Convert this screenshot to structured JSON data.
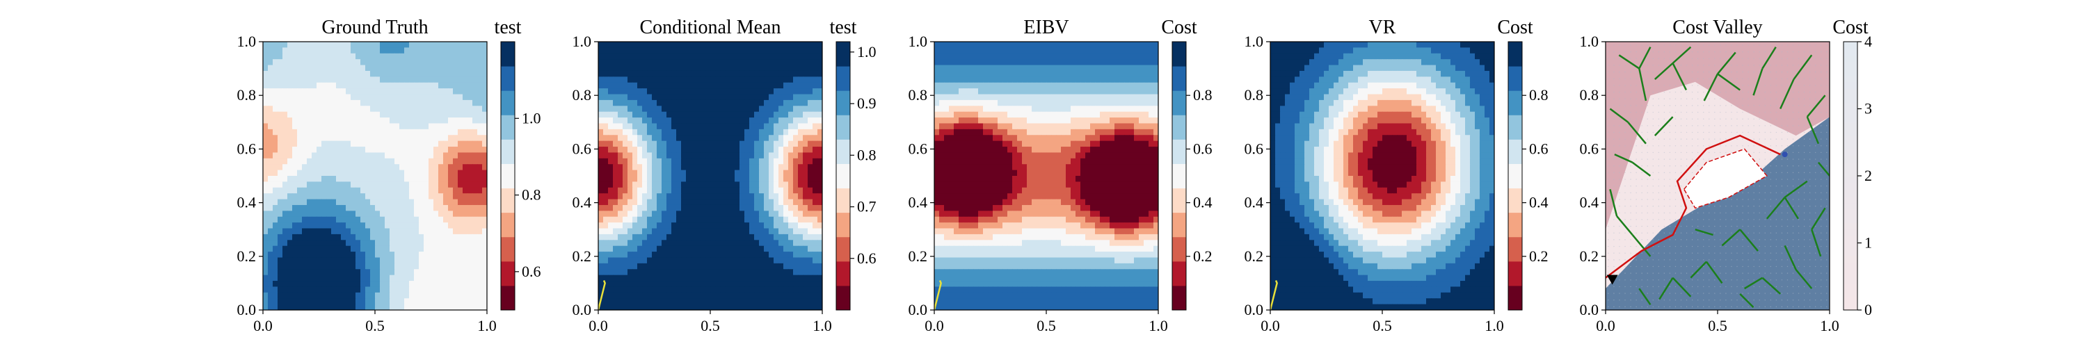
{
  "colors": {
    "rdbu": [
      "#67001f",
      "#b2182b",
      "#d6604d",
      "#f4a582",
      "#fddbc7",
      "#f7f7f7",
      "#d1e5f0",
      "#92c5de",
      "#4393c3",
      "#2166ac",
      "#053061"
    ],
    "path": "#e8e03a",
    "tree": "#1b7f1b",
    "route": "#d01010",
    "agent": "#000000",
    "valley_low": "#f4e6e8",
    "valley_mid": "#d5a0aa",
    "valley_high": "#5f7fa3",
    "valley_sel": "#ffffff",
    "valley_node": "#3050b0"
  },
  "chart_data": [
    {
      "type": "heatmap",
      "title": "Ground Truth",
      "xlim": [
        0.0,
        1.0
      ],
      "ylim": [
        0.0,
        1.0
      ],
      "xticks": [
        "0.0",
        "0.5",
        "1.0"
      ],
      "yticks": [
        "0.0",
        "0.2",
        "0.4",
        "0.6",
        "0.8",
        "1.0"
      ],
      "colorbar": {
        "label": "test",
        "range": [
          0.5,
          1.2
        ],
        "ticks": [
          "0.6",
          "0.8",
          "1.0"
        ],
        "tick_values": [
          0.6,
          0.8,
          1.0
        ]
      },
      "field_kind": "ground_truth",
      "features": [
        {
          "shape": "low",
          "x": 0.95,
          "y": 0.5,
          "value": 0.5
        },
        {
          "shape": "low",
          "x": 0.0,
          "y": 0.62,
          "value": 0.7
        },
        {
          "shape": "high",
          "x": 0.25,
          "y": 0.1,
          "value": 1.2
        },
        {
          "shape": "high",
          "x": 0.55,
          "y": 1.0,
          "value": 1.1
        }
      ],
      "path": []
    },
    {
      "type": "heatmap",
      "title": "Conditional Mean",
      "xlim": [
        0.0,
        1.0
      ],
      "ylim": [
        0.0,
        1.0
      ],
      "xticks": [
        "0.0",
        "0.5",
        "1.0"
      ],
      "yticks": [
        "0.0",
        "0.2",
        "0.4",
        "0.6",
        "0.8",
        "1.0"
      ],
      "colorbar": {
        "label": "test",
        "range": [
          0.5,
          1.02
        ],
        "ticks": [
          "0.6",
          "0.7",
          "0.8",
          "0.9",
          "1.0"
        ],
        "tick_values": [
          0.6,
          0.7,
          0.8,
          0.9,
          1.0
        ]
      },
      "field_kind": "cond_mean",
      "features": [
        {
          "shape": "low",
          "x": 0.0,
          "y": 0.5,
          "value": 0.5
        },
        {
          "shape": "low",
          "x": 1.0,
          "y": 0.5,
          "value": 0.5
        }
      ],
      "path": [
        [
          0.0,
          0.0
        ],
        [
          0.03,
          0.1
        ],
        [
          0.025,
          0.11
        ]
      ]
    },
    {
      "type": "heatmap",
      "title": "EIBV",
      "xlim": [
        0.0,
        1.0
      ],
      "ylim": [
        0.0,
        1.0
      ],
      "xticks": [
        "0.0",
        "0.5",
        "1.0"
      ],
      "yticks": [
        "0.0",
        "0.2",
        "0.4",
        "0.6",
        "0.8",
        "1.0"
      ],
      "colorbar": {
        "label": "Cost",
        "range": [
          0.0,
          1.0
        ],
        "ticks": [
          "0.2",
          "0.4",
          "0.6",
          "0.8"
        ],
        "tick_values": [
          0.2,
          0.4,
          0.6,
          0.8
        ]
      },
      "field_kind": "eibv",
      "features": [
        {
          "shape": "peak",
          "x": 0.15,
          "y": 0.52,
          "value": 0.0
        },
        {
          "shape": "peak",
          "x": 0.85,
          "y": 0.48,
          "value": 0.0
        }
      ],
      "path": [
        [
          0.0,
          0.0
        ],
        [
          0.03,
          0.1
        ],
        [
          0.025,
          0.11
        ]
      ]
    },
    {
      "type": "heatmap",
      "title": "VR",
      "xlim": [
        0.0,
        1.0
      ],
      "ylim": [
        0.0,
        1.0
      ],
      "xticks": [
        "0.0",
        "0.5",
        "1.0"
      ],
      "yticks": [
        "0.0",
        "0.2",
        "0.4",
        "0.6",
        "0.8",
        "1.0"
      ],
      "colorbar": {
        "label": "Cost",
        "range": [
          0.0,
          1.0
        ],
        "ticks": [
          "0.2",
          "0.4",
          "0.6",
          "0.8"
        ],
        "tick_values": [
          0.2,
          0.4,
          0.6,
          0.8
        ]
      },
      "field_kind": "vr",
      "features": [
        {
          "shape": "plateau",
          "x": 0.55,
          "y": 0.55,
          "value": 0.0
        },
        {
          "shape": "high",
          "x": 0.0,
          "y": 0.0,
          "value": 1.0
        }
      ],
      "path": [
        [
          0.0,
          0.0
        ],
        [
          0.03,
          0.1
        ],
        [
          0.025,
          0.11
        ]
      ]
    },
    {
      "type": "heatmap",
      "title": "Cost Valley",
      "xlim": [
        0.0,
        1.0
      ],
      "ylim": [
        0.0,
        1.0
      ],
      "xticks": [
        "0.0",
        "0.5",
        "1.0"
      ],
      "yticks": [
        "0.0",
        "0.2",
        "0.4",
        "0.6",
        "0.8",
        "1.0"
      ],
      "colorbar": {
        "label": "Cost",
        "range": [
          0.0,
          4.0
        ],
        "ticks": [
          "0",
          "1",
          "2",
          "3",
          "4"
        ],
        "tick_values": [
          0,
          1,
          2,
          3,
          4
        ]
      },
      "field_kind": "cost_valley",
      "regions": {
        "high_cost_polygon": [
          [
            0.0,
            0.08
          ],
          [
            0.25,
            0.3
          ],
          [
            0.45,
            0.4
          ],
          [
            0.6,
            0.45
          ],
          [
            0.8,
            0.6
          ],
          [
            1.0,
            0.72
          ],
          [
            1.0,
            0.0
          ],
          [
            0.0,
            0.0
          ]
        ],
        "mid_cost_polygon": [
          [
            0.0,
            0.3
          ],
          [
            0.1,
            0.55
          ],
          [
            0.2,
            0.8
          ],
          [
            0.4,
            0.85
          ],
          [
            0.6,
            0.75
          ],
          [
            0.85,
            0.65
          ],
          [
            1.0,
            0.72
          ],
          [
            1.0,
            1.0
          ],
          [
            0.0,
            1.0
          ]
        ],
        "selected_polygon": [
          [
            0.35,
            0.45
          ],
          [
            0.45,
            0.55
          ],
          [
            0.62,
            0.6
          ],
          [
            0.72,
            0.5
          ],
          [
            0.55,
            0.42
          ],
          [
            0.4,
            0.38
          ]
        ]
      },
      "route": [
        [
          0.0,
          0.12
        ],
        [
          0.16,
          0.22
        ],
        [
          0.3,
          0.28
        ],
        [
          0.36,
          0.38
        ],
        [
          0.32,
          0.48
        ],
        [
          0.45,
          0.6
        ],
        [
          0.6,
          0.65
        ],
        [
          0.78,
          0.58
        ]
      ],
      "agent": [
        0.03,
        0.11
      ],
      "node": [
        0.8,
        0.58
      ],
      "tree_edges": [
        [
          [
            0.05,
            0.35
          ],
          [
            0.02,
            0.45
          ]
        ],
        [
          [
            0.05,
            0.35
          ],
          [
            0.12,
            0.28
          ]
        ],
        [
          [
            0.12,
            0.28
          ],
          [
            0.2,
            0.2
          ]
        ],
        [
          [
            0.15,
            0.9
          ],
          [
            0.2,
            0.98
          ]
        ],
        [
          [
            0.15,
            0.9
          ],
          [
            0.06,
            0.95
          ]
        ],
        [
          [
            0.15,
            0.9
          ],
          [
            0.18,
            0.78
          ]
        ],
        [
          [
            0.3,
            0.92
          ],
          [
            0.38,
            0.98
          ]
        ],
        [
          [
            0.3,
            0.92
          ],
          [
            0.22,
            0.86
          ]
        ],
        [
          [
            0.3,
            0.92
          ],
          [
            0.36,
            0.82
          ]
        ],
        [
          [
            0.5,
            0.88
          ],
          [
            0.58,
            0.96
          ]
        ],
        [
          [
            0.5,
            0.88
          ],
          [
            0.44,
            0.78
          ]
        ],
        [
          [
            0.5,
            0.88
          ],
          [
            0.6,
            0.82
          ]
        ],
        [
          [
            0.7,
            0.9
          ],
          [
            0.76,
            0.98
          ]
        ],
        [
          [
            0.7,
            0.9
          ],
          [
            0.66,
            0.8
          ]
        ],
        [
          [
            0.84,
            0.86
          ],
          [
            0.92,
            0.95
          ]
        ],
        [
          [
            0.84,
            0.86
          ],
          [
            0.78,
            0.75
          ]
        ],
        [
          [
            0.1,
            0.7
          ],
          [
            0.02,
            0.75
          ]
        ],
        [
          [
            0.1,
            0.7
          ],
          [
            0.18,
            0.62
          ]
        ],
        [
          [
            0.12,
            0.55
          ],
          [
            0.2,
            0.5
          ]
        ],
        [
          [
            0.12,
            0.55
          ],
          [
            0.04,
            0.58
          ]
        ],
        [
          [
            0.22,
            0.65
          ],
          [
            0.3,
            0.72
          ]
        ],
        [
          [
            0.9,
            0.72
          ],
          [
            0.98,
            0.8
          ]
        ],
        [
          [
            0.9,
            0.72
          ],
          [
            0.95,
            0.62
          ]
        ],
        [
          [
            0.8,
            0.42
          ],
          [
            0.9,
            0.48
          ]
        ],
        [
          [
            0.8,
            0.42
          ],
          [
            0.86,
            0.34
          ]
        ],
        [
          [
            0.8,
            0.42
          ],
          [
            0.72,
            0.34
          ]
        ],
        [
          [
            0.92,
            0.3
          ],
          [
            0.98,
            0.38
          ]
        ],
        [
          [
            0.92,
            0.3
          ],
          [
            0.96,
            0.2
          ]
        ],
        [
          [
            0.6,
            0.3
          ],
          [
            0.68,
            0.22
          ]
        ],
        [
          [
            0.6,
            0.3
          ],
          [
            0.52,
            0.24
          ]
        ],
        [
          [
            0.45,
            0.18
          ],
          [
            0.52,
            0.1
          ]
        ],
        [
          [
            0.45,
            0.18
          ],
          [
            0.38,
            0.12
          ]
        ],
        [
          [
            0.3,
            0.12
          ],
          [
            0.24,
            0.04
          ]
        ],
        [
          [
            0.3,
            0.12
          ],
          [
            0.38,
            0.05
          ]
        ],
        [
          [
            0.7,
            0.12
          ],
          [
            0.78,
            0.06
          ]
        ],
        [
          [
            0.7,
            0.12
          ],
          [
            0.62,
            0.08
          ]
        ],
        [
          [
            0.85,
            0.15
          ],
          [
            0.92,
            0.08
          ]
        ],
        [
          [
            0.85,
            0.15
          ],
          [
            0.8,
            0.24
          ]
        ],
        [
          [
            0.6,
            0.06
          ],
          [
            0.66,
            0.01
          ]
        ],
        [
          [
            0.15,
            0.08
          ],
          [
            0.2,
            0.02
          ]
        ],
        [
          [
            0.4,
            0.3
          ],
          [
            0.48,
            0.28
          ]
        ],
        [
          [
            0.95,
            0.55
          ],
          [
            1.0,
            0.5
          ]
        ]
      ]
    }
  ]
}
